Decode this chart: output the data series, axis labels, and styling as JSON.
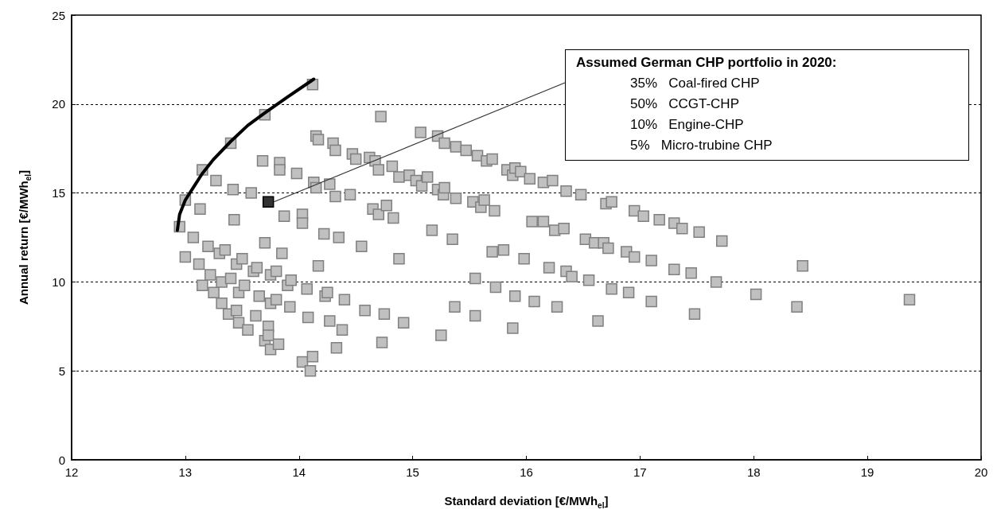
{
  "chart_data": {
    "type": "scatter",
    "xlabel": "Standard deviation [€/MWh$_{el}$]",
    "ylabel": "Annual return [€/MWh$_{el}$]",
    "xlim": [
      12,
      20
    ],
    "xticks": [
      12,
      13,
      14,
      15,
      16,
      17,
      18,
      19,
      20
    ],
    "ylim": [
      0,
      25
    ],
    "yticks": [
      0,
      5,
      10,
      15,
      20,
      25
    ],
    "grid": "y",
    "annotations": [
      {
        "text": "Assumed German CHP portfolio in 2020:\n35%   Coal-fired CHP\n50%   CCGT-CHP\n10%   Engine-CHP\n5%   Micro-trubine CHP",
        "x": 13.73,
        "y": 14.5
      }
    ],
    "series": [
      {
        "marker": "square",
        "color": "#c0c0c0",
        "x": [
          12.95,
          13.0,
          13.0,
          13.07,
          13.12,
          13.15,
          13.13,
          13.15,
          13.2,
          13.22,
          13.25,
          13.27,
          13.3,
          13.32,
          13.32,
          13.35,
          13.38,
          13.4,
          13.4,
          13.42,
          13.43,
          13.45,
          13.45,
          13.47,
          13.47,
          13.5,
          13.52,
          13.55,
          13.58,
          13.6,
          13.62,
          13.63,
          13.65,
          13.68,
          13.7,
          13.7,
          13.7,
          13.73,
          13.73,
          13.75,
          13.75,
          13.75,
          13.8,
          13.8,
          13.82,
          13.83,
          13.83,
          13.85,
          13.87,
          13.9,
          13.92,
          13.93,
          13.98,
          14.03,
          14.03,
          14.03,
          14.07,
          14.08,
          14.1,
          14.12,
          14.12,
          14.13,
          14.15,
          14.15,
          14.17,
          14.17,
          14.22,
          14.23,
          14.25,
          14.27,
          14.27,
          14.3,
          14.32,
          14.32,
          14.33,
          14.35,
          14.38,
          14.4,
          14.45,
          14.47,
          14.5,
          14.55,
          14.58,
          14.62,
          14.65,
          14.67,
          14.7,
          14.7,
          14.72,
          14.75,
          14.73,
          14.77,
          14.82,
          14.83,
          14.88,
          14.88,
          14.92,
          14.97,
          15.03,
          15.07,
          15.08,
          15.13,
          15.17,
          15.22,
          15.22,
          15.25,
          15.27,
          15.28,
          15.28,
          15.35,
          15.37,
          15.38,
          15.38,
          15.47,
          15.53,
          15.55,
          15.55,
          15.57,
          15.6,
          15.63,
          15.65,
          15.7,
          15.7,
          15.72,
          15.73,
          15.8,
          15.83,
          15.88,
          15.9,
          15.88,
          15.9,
          15.95,
          15.98,
          16.03,
          16.05,
          16.07,
          16.15,
          16.15,
          16.2,
          16.23,
          16.25,
          16.27,
          16.33,
          16.35,
          16.35,
          16.4,
          16.48,
          16.52,
          16.55,
          16.6,
          16.63,
          16.68,
          16.7,
          16.72,
          16.75,
          16.75,
          16.88,
          16.9,
          16.95,
          16.95,
          17.03,
          17.1,
          17.1,
          17.17,
          17.3,
          17.3,
          17.37,
          17.45,
          17.48,
          17.52,
          17.67,
          17.72,
          18.02,
          18.38,
          18.43,
          19.37
        ],
        "values": [
          13.1,
          11.4,
          14.6,
          12.5,
          11.0,
          9.8,
          14.1,
          16.3,
          12.0,
          10.4,
          9.4,
          15.7,
          11.6,
          8.8,
          10.0,
          11.8,
          8.2,
          10.2,
          17.8,
          15.2,
          13.5,
          8.4,
          11.0,
          9.4,
          7.7,
          11.3,
          9.8,
          7.3,
          15.0,
          10.6,
          8.1,
          10.8,
          9.2,
          16.8,
          12.2,
          19.4,
          6.7,
          7.5,
          7.0,
          6.2,
          8.8,
          10.4,
          9.0,
          10.6,
          6.5,
          16.7,
          16.3,
          11.6,
          13.7,
          9.8,
          8.6,
          10.1,
          16.1,
          13.8,
          13.3,
          5.5,
          9.6,
          8.0,
          5.0,
          5.8,
          21.1,
          15.6,
          15.3,
          18.2,
          18.0,
          10.9,
          12.7,
          9.2,
          9.4,
          15.5,
          7.8,
          17.8,
          17.4,
          14.8,
          6.3,
          12.5,
          7.3,
          9.0,
          14.9,
          17.2,
          16.9,
          12.0,
          8.4,
          17.0,
          14.1,
          16.8,
          16.3,
          13.8,
          19.3,
          8.2,
          6.6,
          14.3,
          16.5,
          13.6,
          15.9,
          11.3,
          7.7,
          16.0,
          15.7,
          18.4,
          15.4,
          15.9,
          12.9,
          15.2,
          18.2,
          7.0,
          14.9,
          15.3,
          17.8,
          12.4,
          8.6,
          14.7,
          17.6,
          17.4,
          14.5,
          10.2,
          8.1,
          17.1,
          14.2,
          14.6,
          16.8,
          16.9,
          11.7,
          14.0,
          9.7,
          11.8,
          16.3,
          16.0,
          16.4,
          7.4,
          9.2,
          16.2,
          11.3,
          15.8,
          13.4,
          8.9,
          15.6,
          13.4,
          10.8,
          15.7,
          12.9,
          8.6,
          13.0,
          15.1,
          10.6,
          10.3,
          14.9,
          12.4,
          10.1,
          12.2,
          7.8,
          12.2,
          14.4,
          11.9,
          14.5,
          9.6,
          11.7,
          9.4,
          14.0,
          11.4,
          13.7,
          11.2,
          8.9,
          13.5,
          13.3,
          10.7,
          13.0,
          10.5,
          8.2,
          12.8,
          10.0,
          12.3,
          9.3,
          8.6,
          10.9,
          9.0
        ]
      },
      {
        "marker": "square",
        "color": "#333333",
        "x": [
          13.73
        ],
        "values": [
          14.5
        ]
      },
      {
        "type": "line",
        "marker": "none",
        "line_style": "solid",
        "color": "#000000",
        "x": [
          12.93,
          12.95,
          13.0,
          13.07,
          13.15,
          13.25,
          13.4,
          13.55,
          13.7,
          13.9,
          14.13
        ],
        "values": [
          12.9,
          13.8,
          14.6,
          15.3,
          16.1,
          16.9,
          17.9,
          18.8,
          19.5,
          20.4,
          21.4
        ]
      }
    ]
  }
}
